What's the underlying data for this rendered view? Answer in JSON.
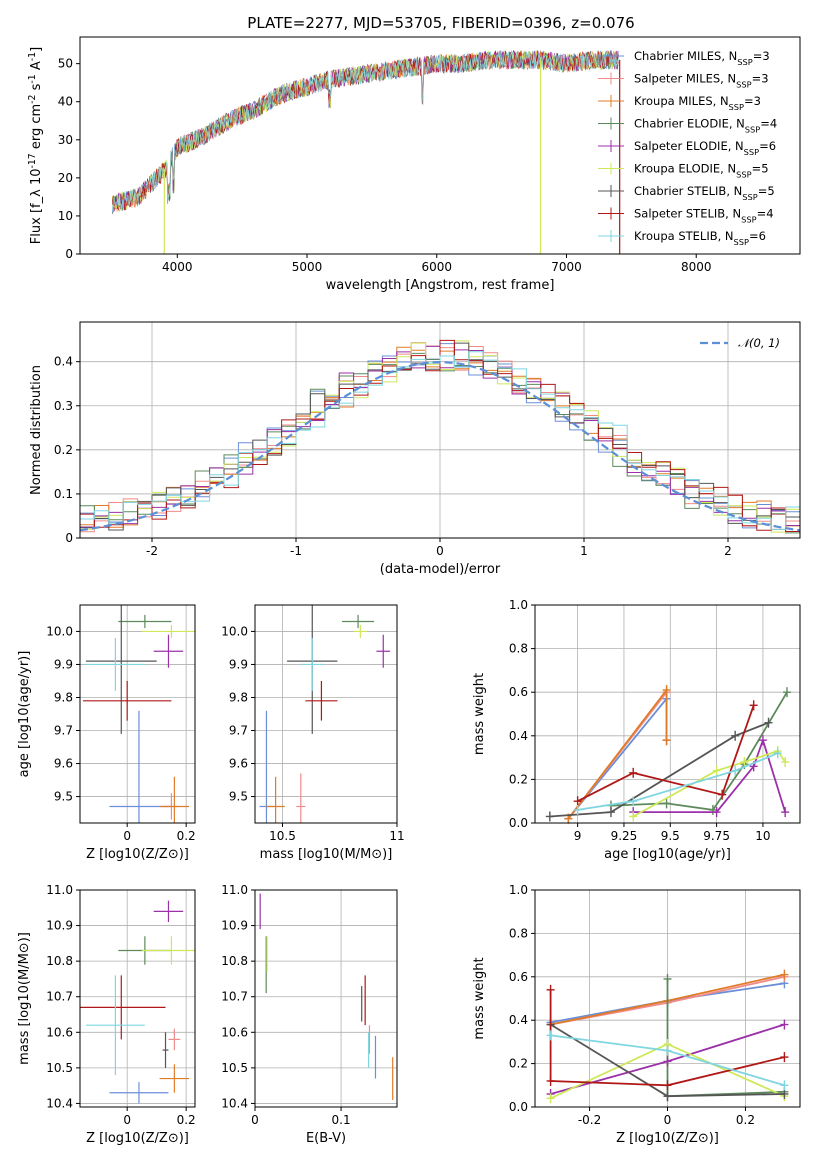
{
  "figure": {
    "title": "PLATE=2277, MJD=53705, FIBERID=0396, z=0.076"
  },
  "colors": {
    "series": [
      "#6a8fd8",
      "#f08b8b",
      "#e07b28",
      "#5c8a5c",
      "#9b30a8",
      "#cfe85a",
      "#555555",
      "#b01818",
      "#7fd6e0"
    ],
    "gaussian": "#5b8fd6",
    "grid": "#b0b0b0"
  },
  "chart_data": [
    {
      "id": "spectrum",
      "type": "line",
      "xlabel": "wavelength [Angstrom, rest frame]",
      "ylabel": "Flux [f_λ 10^-17 erg cm^-2 s^-1 A^-1]",
      "xlim": [
        3250,
        8800
      ],
      "ylim": [
        0,
        57
      ],
      "xticks": [
        4000,
        5000,
        6000,
        7000,
        8000
      ],
      "yticks": [
        0,
        10,
        20,
        30,
        40,
        50
      ],
      "grid": false,
      "legend_position": "lower-right",
      "series_names": [
        "Chabrier MILES, N_SSP=3",
        "Salpeter MILES, N_SSP=3",
        "Kroupa MILES, N_SSP=3",
        "Chabrier ELODIE, N_SSP=4",
        "Salpeter ELODIE, N_SSP=6",
        "Kroupa ELODIE, N_SSP=5",
        "Chabrier STELIB, N_SSP=5",
        "Salpeter STELIB, N_SSP=4",
        "Kroupa STELIB, N_SSP=6"
      ],
      "continuum": {
        "x": [
          3500,
          3700,
          3900,
          4000,
          4200,
          4400,
          4600,
          4800,
          5000,
          5200,
          5400,
          5600,
          5800,
          6000,
          6200,
          6400,
          6600,
          6800,
          7000,
          7200,
          7400
        ],
        "y": [
          13,
          15,
          22,
          28,
          31,
          35,
          38,
          42,
          44,
          46,
          47,
          48,
          49,
          50,
          50,
          51,
          51,
          51,
          50,
          51,
          51
        ]
      },
      "drops": [
        {
          "x": 3900,
          "y": 0,
          "series": 5
        },
        {
          "x": 6800,
          "y": 0,
          "series": 5
        },
        {
          "x": 7410,
          "y": 0,
          "series": 7
        }
      ]
    },
    {
      "id": "residuals",
      "type": "line",
      "xlabel": "(data-model)/error",
      "ylabel": "Normed distribution",
      "xlim": [
        -2.5,
        2.5
      ],
      "ylim": [
        0,
        0.49
      ],
      "xticks": [
        -2,
        -1,
        0,
        1,
        2
      ],
      "yticks": [
        0.0,
        0.1,
        0.2,
        0.3,
        0.4
      ],
      "grid": true,
      "legend_position": "upper-right",
      "legend": [
        "𝒩(0, 1)"
      ],
      "gaussian": {
        "mean": 0,
        "sigma": 1
      }
    },
    {
      "id": "age-vs-Z",
      "type": "scatter",
      "xlabel": "Z [log10(Z/Z⊙)]",
      "ylabel": "age [log10(age/yr)]",
      "xlim": [
        -0.16,
        0.23
      ],
      "ylim": [
        9.42,
        10.08
      ],
      "xticks": [
        0.0,
        0.2
      ],
      "yticks": [
        9.5,
        9.6,
        9.7,
        9.8,
        9.9,
        10.0
      ],
      "grid": true,
      "points": [
        {
          "s": 0,
          "x": 0.04,
          "y": 9.47,
          "xe": 0.1,
          "ye": 0.29
        },
        {
          "s": 1,
          "x": 0.15,
          "y": 9.47,
          "xe": 0.02,
          "ye": 0.04
        },
        {
          "s": 2,
          "x": 0.16,
          "y": 9.47,
          "xe": 0.05,
          "ye": 0.09
        },
        {
          "s": 3,
          "x": 0.06,
          "y": 10.03,
          "xe": 0.09,
          "ye": 0.02
        },
        {
          "s": 4,
          "x": 0.14,
          "y": 9.94,
          "xe": 0.05,
          "ye": 0.05
        },
        {
          "s": 5,
          "x": 0.15,
          "y": 10.0,
          "xe": 0.1,
          "ye": 0.02
        },
        {
          "s": 6,
          "x": -0.02,
          "y": 9.91,
          "xe": 0.12,
          "ye": 0.22
        },
        {
          "s": 7,
          "x": 0.0,
          "y": 9.79,
          "xe": 0.15,
          "ye": 0.06
        },
        {
          "s": 8,
          "x": -0.04,
          "y": 9.9,
          "xe": 0.1,
          "ye": 0.08
        }
      ]
    },
    {
      "id": "age-vs-mass",
      "type": "scatter",
      "xlabel": "mass [log10(M/M⊙)]",
      "ylabel": "",
      "xlim": [
        10.38,
        11.0
      ],
      "ylim": [
        9.42,
        10.08
      ],
      "xticks": [
        10.5,
        11.0
      ],
      "yticks": [
        9.5,
        9.6,
        9.7,
        9.8,
        9.9,
        10.0
      ],
      "grid": true,
      "points": [
        {
          "s": 0,
          "x": 10.43,
          "y": 9.47,
          "xe": 0.03,
          "ye": 0.29
        },
        {
          "s": 1,
          "x": 10.58,
          "y": 9.47,
          "xe": 0.02,
          "ye": 0.1
        },
        {
          "s": 2,
          "x": 10.47,
          "y": 9.47,
          "xe": 0.04,
          "ye": 0.09
        },
        {
          "s": 3,
          "x": 10.83,
          "y": 10.03,
          "xe": 0.07,
          "ye": 0.02
        },
        {
          "s": 4,
          "x": 10.94,
          "y": 9.94,
          "xe": 0.03,
          "ye": 0.05
        },
        {
          "s": 5,
          "x": 10.84,
          "y": 10.0,
          "xe": 0.03,
          "ye": 0.02
        },
        {
          "s": 6,
          "x": 10.63,
          "y": 9.91,
          "xe": 0.11,
          "ye": 0.22
        },
        {
          "s": 7,
          "x": 10.67,
          "y": 9.79,
          "xe": 0.07,
          "ye": 0.06
        },
        {
          "s": 8,
          "x": 10.63,
          "y": 9.9,
          "xe": 0.05,
          "ye": 0.08
        }
      ]
    },
    {
      "id": "massweight-vs-age",
      "type": "line",
      "xlabel": "age [log10(age/yr)]",
      "ylabel": "mass weight",
      "xlim": [
        8.77,
        10.2
      ],
      "ylim": [
        0,
        1.0
      ],
      "xticks": [
        9.0,
        9.25,
        9.5,
        9.75,
        10.0
      ],
      "yticks": [
        0.0,
        0.2,
        0.4,
        0.6,
        0.8,
        1.0
      ],
      "grid": true,
      "series": [
        {
          "s": 0,
          "x": [
            8.95,
            9.48,
            9.48
          ],
          "y": [
            0.02,
            0.57,
            0.38
          ]
        },
        {
          "s": 1,
          "x": [
            8.95,
            9.48,
            9.48
          ],
          "y": [
            0.02,
            0.6,
            0.38
          ]
        },
        {
          "s": 2,
          "x": [
            8.95,
            9.48,
            9.48
          ],
          "y": [
            0.02,
            0.61,
            0.38
          ]
        },
        {
          "s": 3,
          "x": [
            9.18,
            9.48,
            9.73,
            9.9,
            10.13
          ],
          "y": [
            0.08,
            0.09,
            0.06,
            0.27,
            0.6
          ]
        },
        {
          "s": 4,
          "x": [
            9.3,
            9.75,
            9.95,
            10.0,
            10.12
          ],
          "y": [
            0.05,
            0.05,
            0.26,
            0.38,
            0.05
          ]
        },
        {
          "s": 5,
          "x": [
            9.3,
            9.75,
            9.9,
            10.08,
            10.12
          ],
          "y": [
            0.03,
            0.24,
            0.28,
            0.33,
            0.28
          ]
        },
        {
          "s": 6,
          "x": [
            8.85,
            9.18,
            9.85,
            10.03
          ],
          "y": [
            0.03,
            0.05,
            0.4,
            0.46
          ]
        },
        {
          "s": 7,
          "x": [
            9.0,
            9.3,
            9.78,
            9.95
          ],
          "y": [
            0.1,
            0.23,
            0.13,
            0.54
          ]
        },
        {
          "s": 8,
          "x": [
            9.0,
            9.3,
            9.85,
            10.08
          ],
          "y": [
            0.06,
            0.1,
            0.24,
            0.32
          ]
        }
      ]
    },
    {
      "id": "mass-vs-Z",
      "type": "scatter",
      "xlabel": "Z [log10(Z/Z⊙)]",
      "ylabel": "mass [log10(M/M⊙)]",
      "xlim": [
        -0.16,
        0.23
      ],
      "ylim": [
        10.39,
        11.0
      ],
      "xticks": [
        0.0,
        0.2
      ],
      "yticks": [
        10.4,
        10.5,
        10.6,
        10.7,
        10.8,
        10.9,
        11.0
      ],
      "grid": true,
      "points": [
        {
          "s": 0,
          "x": 0.04,
          "y": 10.43,
          "xe": 0.1,
          "ye": 0.03
        },
        {
          "s": 1,
          "x": 0.16,
          "y": 10.58,
          "xe": 0.02,
          "ye": 0.03
        },
        {
          "s": 2,
          "x": 0.16,
          "y": 10.47,
          "xe": 0.05,
          "ye": 0.04
        },
        {
          "s": 3,
          "x": 0.06,
          "y": 10.83,
          "xe": 0.09,
          "ye": 0.04
        },
        {
          "s": 4,
          "x": 0.14,
          "y": 10.94,
          "xe": 0.05,
          "ye": 0.03
        },
        {
          "s": 5,
          "x": 0.15,
          "y": 10.83,
          "xe": 0.1,
          "ye": 0.04
        },
        {
          "s": 6,
          "x": 0.13,
          "y": 10.55,
          "xe": 0.01,
          "ye": 0.05
        },
        {
          "s": 7,
          "x": -0.02,
          "y": 10.67,
          "xe": 0.15,
          "ye": 0.09
        },
        {
          "s": 8,
          "x": -0.04,
          "y": 10.62,
          "xe": 0.1,
          "ye": 0.14
        }
      ]
    },
    {
      "id": "mass-vs-EBV",
      "type": "scatter",
      "xlabel": "E(B-V)",
      "ylabel": "",
      "xlim": [
        0.0,
        0.165
      ],
      "ylim": [
        10.39,
        11.0
      ],
      "xticks": [
        0.0,
        0.1
      ],
      "yticks": [
        10.4,
        10.5,
        10.6,
        10.7,
        10.8,
        10.9,
        11.0
      ],
      "grid": true,
      "points": [
        {
          "s": 0,
          "x": 0.14,
          "y": 10.53,
          "xe": 0.0,
          "ye": 0.06
        },
        {
          "s": 1,
          "x": 0.133,
          "y": 10.58,
          "xe": 0.0,
          "ye": 0.04
        },
        {
          "s": 2,
          "x": 0.16,
          "y": 10.47,
          "xe": 0.0,
          "ye": 0.06
        },
        {
          "s": 3,
          "x": 0.013,
          "y": 10.79,
          "xe": 0.0,
          "ye": 0.08
        },
        {
          "s": 4,
          "x": 0.006,
          "y": 10.94,
          "xe": 0.0,
          "ye": 0.05
        },
        {
          "s": 5,
          "x": 0.014,
          "y": 10.82,
          "xe": 0.0,
          "ye": 0.05
        },
        {
          "s": 6,
          "x": 0.124,
          "y": 10.68,
          "xe": 0.0,
          "ye": 0.05
        },
        {
          "s": 7,
          "x": 0.128,
          "y": 10.69,
          "xe": 0.0,
          "ye": 0.07
        },
        {
          "s": 8,
          "x": 0.132,
          "y": 10.55,
          "xe": 0.0,
          "ye": 0.05
        }
      ]
    },
    {
      "id": "massweight-vs-Z",
      "type": "line",
      "xlabel": "Z [log10(Z/Z⊙)]",
      "ylabel": "mass weight",
      "xlim": [
        -0.34,
        0.34
      ],
      "ylim": [
        0,
        1.0
      ],
      "xticks": [
        -0.2,
        0.0,
        0.2
      ],
      "yticks": [
        0.0,
        0.2,
        0.4,
        0.6,
        0.8,
        1.0
      ],
      "grid": true,
      "series": [
        {
          "s": 0,
          "x": [
            -0.3,
            0.0,
            0.3
          ],
          "y": [
            0.39,
            0.49,
            0.57
          ]
        },
        {
          "s": 1,
          "x": [
            -0.3,
            0.0,
            0.3
          ],
          "y": [
            0.38,
            0.48,
            0.6
          ]
        },
        {
          "s": 2,
          "x": [
            -0.3,
            0.0,
            0.3
          ],
          "y": [
            0.38,
            0.49,
            0.61
          ]
        },
        {
          "s": 3,
          "x": [
            0.0,
            0.0,
            0.3
          ],
          "y": [
            0.59,
            0.05,
            0.07
          ]
        },
        {
          "s": 4,
          "x": [
            -0.3,
            0.0,
            0.3
          ],
          "y": [
            0.06,
            0.21,
            0.38
          ]
        },
        {
          "s": 5,
          "x": [
            -0.3,
            0.0,
            0.3
          ],
          "y": [
            0.04,
            0.29,
            0.05
          ]
        },
        {
          "s": 6,
          "x": [
            -0.3,
            0.0,
            0.3
          ],
          "y": [
            0.38,
            0.05,
            0.06
          ]
        },
        {
          "s": 7,
          "x": [
            -0.3,
            -0.3,
            0.0,
            0.3
          ],
          "y": [
            0.54,
            0.12,
            0.1,
            0.23
          ]
        },
        {
          "s": 8,
          "x": [
            -0.3,
            0.0,
            0.3
          ],
          "y": [
            0.33,
            0.26,
            0.1
          ]
        }
      ]
    }
  ]
}
